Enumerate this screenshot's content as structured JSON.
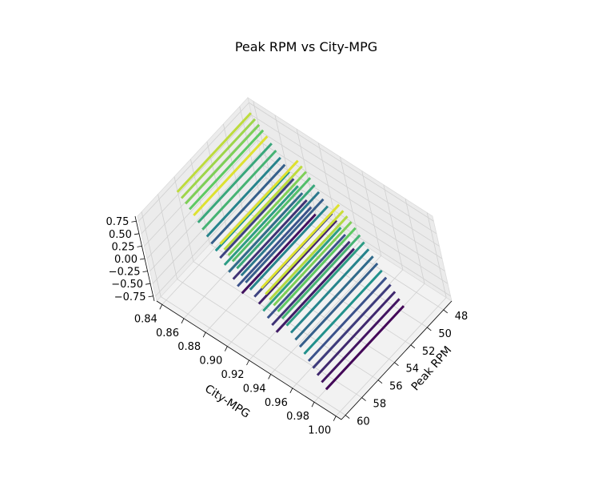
{
  "chart_data": {
    "type": "line",
    "projection": "3d",
    "title": "Peak RPM vs City-MPG",
    "xlabel": "Peak RPM",
    "ylabel": "City-MPG",
    "zlabel": "",
    "x_ticks": [
      "48",
      "50",
      "52",
      "54",
      "56",
      "58",
      "60"
    ],
    "y_ticks": [
      "0.84",
      "0.86",
      "0.88",
      "0.90",
      "0.92",
      "0.94",
      "0.96",
      "0.98",
      "1.00"
    ],
    "z_ticks": [
      "0.75",
      "0.50",
      "0.25",
      "0.00",
      "−0.25",
      "−0.50",
      "−0.75"
    ],
    "xlim": [
      47,
      60.5
    ],
    "ylim": [
      0.835,
      1.005
    ],
    "zlim": [
      -0.85,
      0.85
    ],
    "colormap": "viridis",
    "grid": true,
    "series": [
      {
        "y": 0.84,
        "x": [
          47.5,
          56.5
        ],
        "z": 0.7,
        "color_value": 0.9
      },
      {
        "y": 0.843,
        "x": [
          47.5,
          56.5
        ],
        "z": 0.62,
        "color_value": 0.85
      },
      {
        "y": 0.846,
        "x": [
          47.5,
          56.5
        ],
        "z": 0.55,
        "color_value": 0.8
      },
      {
        "y": 0.849,
        "x": [
          47.5,
          56.5
        ],
        "z": 0.48,
        "color_value": 0.75
      },
      {
        "y": 0.852,
        "x": [
          47.5,
          56.5
        ],
        "z": 0.4,
        "color_value": 0.95
      },
      {
        "y": 0.855,
        "x": [
          47.5,
          56.5
        ],
        "z": 0.3,
        "color_value": 0.6
      },
      {
        "y": 0.858,
        "x": [
          47.5,
          56.5
        ],
        "z": 0.2,
        "color_value": 0.65
      },
      {
        "y": 0.861,
        "x": [
          47.5,
          56.5
        ],
        "z": 0.1,
        "color_value": 0.45
      },
      {
        "y": 0.864,
        "x": [
          47.5,
          56.5
        ],
        "z": 0.0,
        "color_value": 0.3
      },
      {
        "y": 0.867,
        "x": [
          47.5,
          56.5
        ],
        "z": -0.1,
        "color_value": 0.5
      },
      {
        "y": 0.87,
        "x": [
          47.5,
          56.5
        ],
        "z": -0.2,
        "color_value": 0.2
      },
      {
        "y": 0.873,
        "x": [
          47.5,
          56.5
        ],
        "z": -0.3,
        "color_value": 0.55
      },
      {
        "y": 0.876,
        "x": [
          47.5,
          56.5
        ],
        "z": -0.4,
        "color_value": 0.35
      },
      {
        "y": 0.879,
        "x": [
          47.5,
          56.5
        ],
        "z": -0.5,
        "color_value": 0.15
      },
      {
        "y": 0.882,
        "x": [
          47.5,
          56.5
        ],
        "z": -0.6,
        "color_value": 0.25
      },
      {
        "y": 0.885,
        "x": [
          47.5,
          56.5
        ],
        "z": -0.7,
        "color_value": 0.05
      },
      {
        "y": 0.89,
        "x": [
          48.5,
          58.0
        ],
        "z": 0.62,
        "color_value": 0.95
      },
      {
        "y": 0.893,
        "x": [
          48.5,
          58.0
        ],
        "z": 0.55,
        "color_value": 0.9
      },
      {
        "y": 0.896,
        "x": [
          48.5,
          58.0
        ],
        "z": 0.48,
        "color_value": 0.8
      },
      {
        "y": 0.899,
        "x": [
          48.5,
          58.0
        ],
        "z": 0.4,
        "color_value": 0.7
      },
      {
        "y": 0.902,
        "x": [
          48.5,
          58.0
        ],
        "z": 0.3,
        "color_value": 0.6
      },
      {
        "y": 0.905,
        "x": [
          48.5,
          58.0
        ],
        "z": 0.2,
        "color_value": 0.4
      },
      {
        "y": 0.908,
        "x": [
          48.5,
          58.0
        ],
        "z": 0.1,
        "color_value": 0.3
      },
      {
        "y": 0.911,
        "x": [
          48.5,
          58.0
        ],
        "z": 0.0,
        "color_value": 0.45
      },
      {
        "y": 0.914,
        "x": [
          48.5,
          58.0
        ],
        "z": -0.1,
        "color_value": 0.2
      },
      {
        "y": 0.917,
        "x": [
          48.5,
          58.0
        ],
        "z": -0.2,
        "color_value": 0.1
      },
      {
        "y": 0.92,
        "x": [
          48.5,
          58.0
        ],
        "z": -0.3,
        "color_value": 0.55
      },
      {
        "y": 0.923,
        "x": [
          48.5,
          58.0
        ],
        "z": -0.4,
        "color_value": 0.25
      },
      {
        "y": 0.926,
        "x": [
          48.5,
          58.0
        ],
        "z": -0.5,
        "color_value": 0.15
      },
      {
        "y": 0.929,
        "x": [
          48.5,
          58.0
        ],
        "z": -0.6,
        "color_value": 0.08
      },
      {
        "y": 0.94,
        "x": [
          50.0,
          59.5
        ],
        "z": 0.7,
        "color_value": 0.95
      },
      {
        "y": 0.943,
        "x": [
          50.0,
          59.5
        ],
        "z": 0.62,
        "color_value": 0.92
      },
      {
        "y": 0.946,
        "x": [
          50.0,
          59.5
        ],
        "z": 0.55,
        "color_value": 0.88
      },
      {
        "y": 0.949,
        "x": [
          50.0,
          59.5
        ],
        "z": 0.48,
        "color_value": 0.8
      },
      {
        "y": 0.952,
        "x": [
          50.0,
          59.5
        ],
        "z": 0.4,
        "color_value": 0.75
      },
      {
        "y": 0.955,
        "x": [
          50.0,
          59.5
        ],
        "z": 0.3,
        "color_value": 0.65
      },
      {
        "y": 0.958,
        "x": [
          50.0,
          59.5
        ],
        "z": 0.2,
        "color_value": 0.55
      },
      {
        "y": 0.961,
        "x": [
          50.0,
          59.5
        ],
        "z": 0.1,
        "color_value": 0.45
      },
      {
        "y": 0.964,
        "x": [
          50.0,
          59.5
        ],
        "z": 0.0,
        "color_value": 0.35
      },
      {
        "y": 0.967,
        "x": [
          50.0,
          59.5
        ],
        "z": -0.1,
        "color_value": 0.3
      },
      {
        "y": 0.97,
        "x": [
          50.0,
          59.5
        ],
        "z": -0.2,
        "color_value": 0.5
      },
      {
        "y": 0.973,
        "x": [
          50.0,
          59.5
        ],
        "z": -0.3,
        "color_value": 0.25
      },
      {
        "y": 0.976,
        "x": [
          50.0,
          59.5
        ],
        "z": -0.4,
        "color_value": 0.18
      },
      {
        "y": 0.979,
        "x": [
          50.0,
          59.5
        ],
        "z": -0.5,
        "color_value": 0.12
      },
      {
        "y": 0.982,
        "x": [
          50.0,
          59.5
        ],
        "z": -0.6,
        "color_value": 0.06
      },
      {
        "y": 0.985,
        "x": [
          50.0,
          59.5
        ],
        "z": -0.7,
        "color_value": 0.02
      }
    ]
  }
}
